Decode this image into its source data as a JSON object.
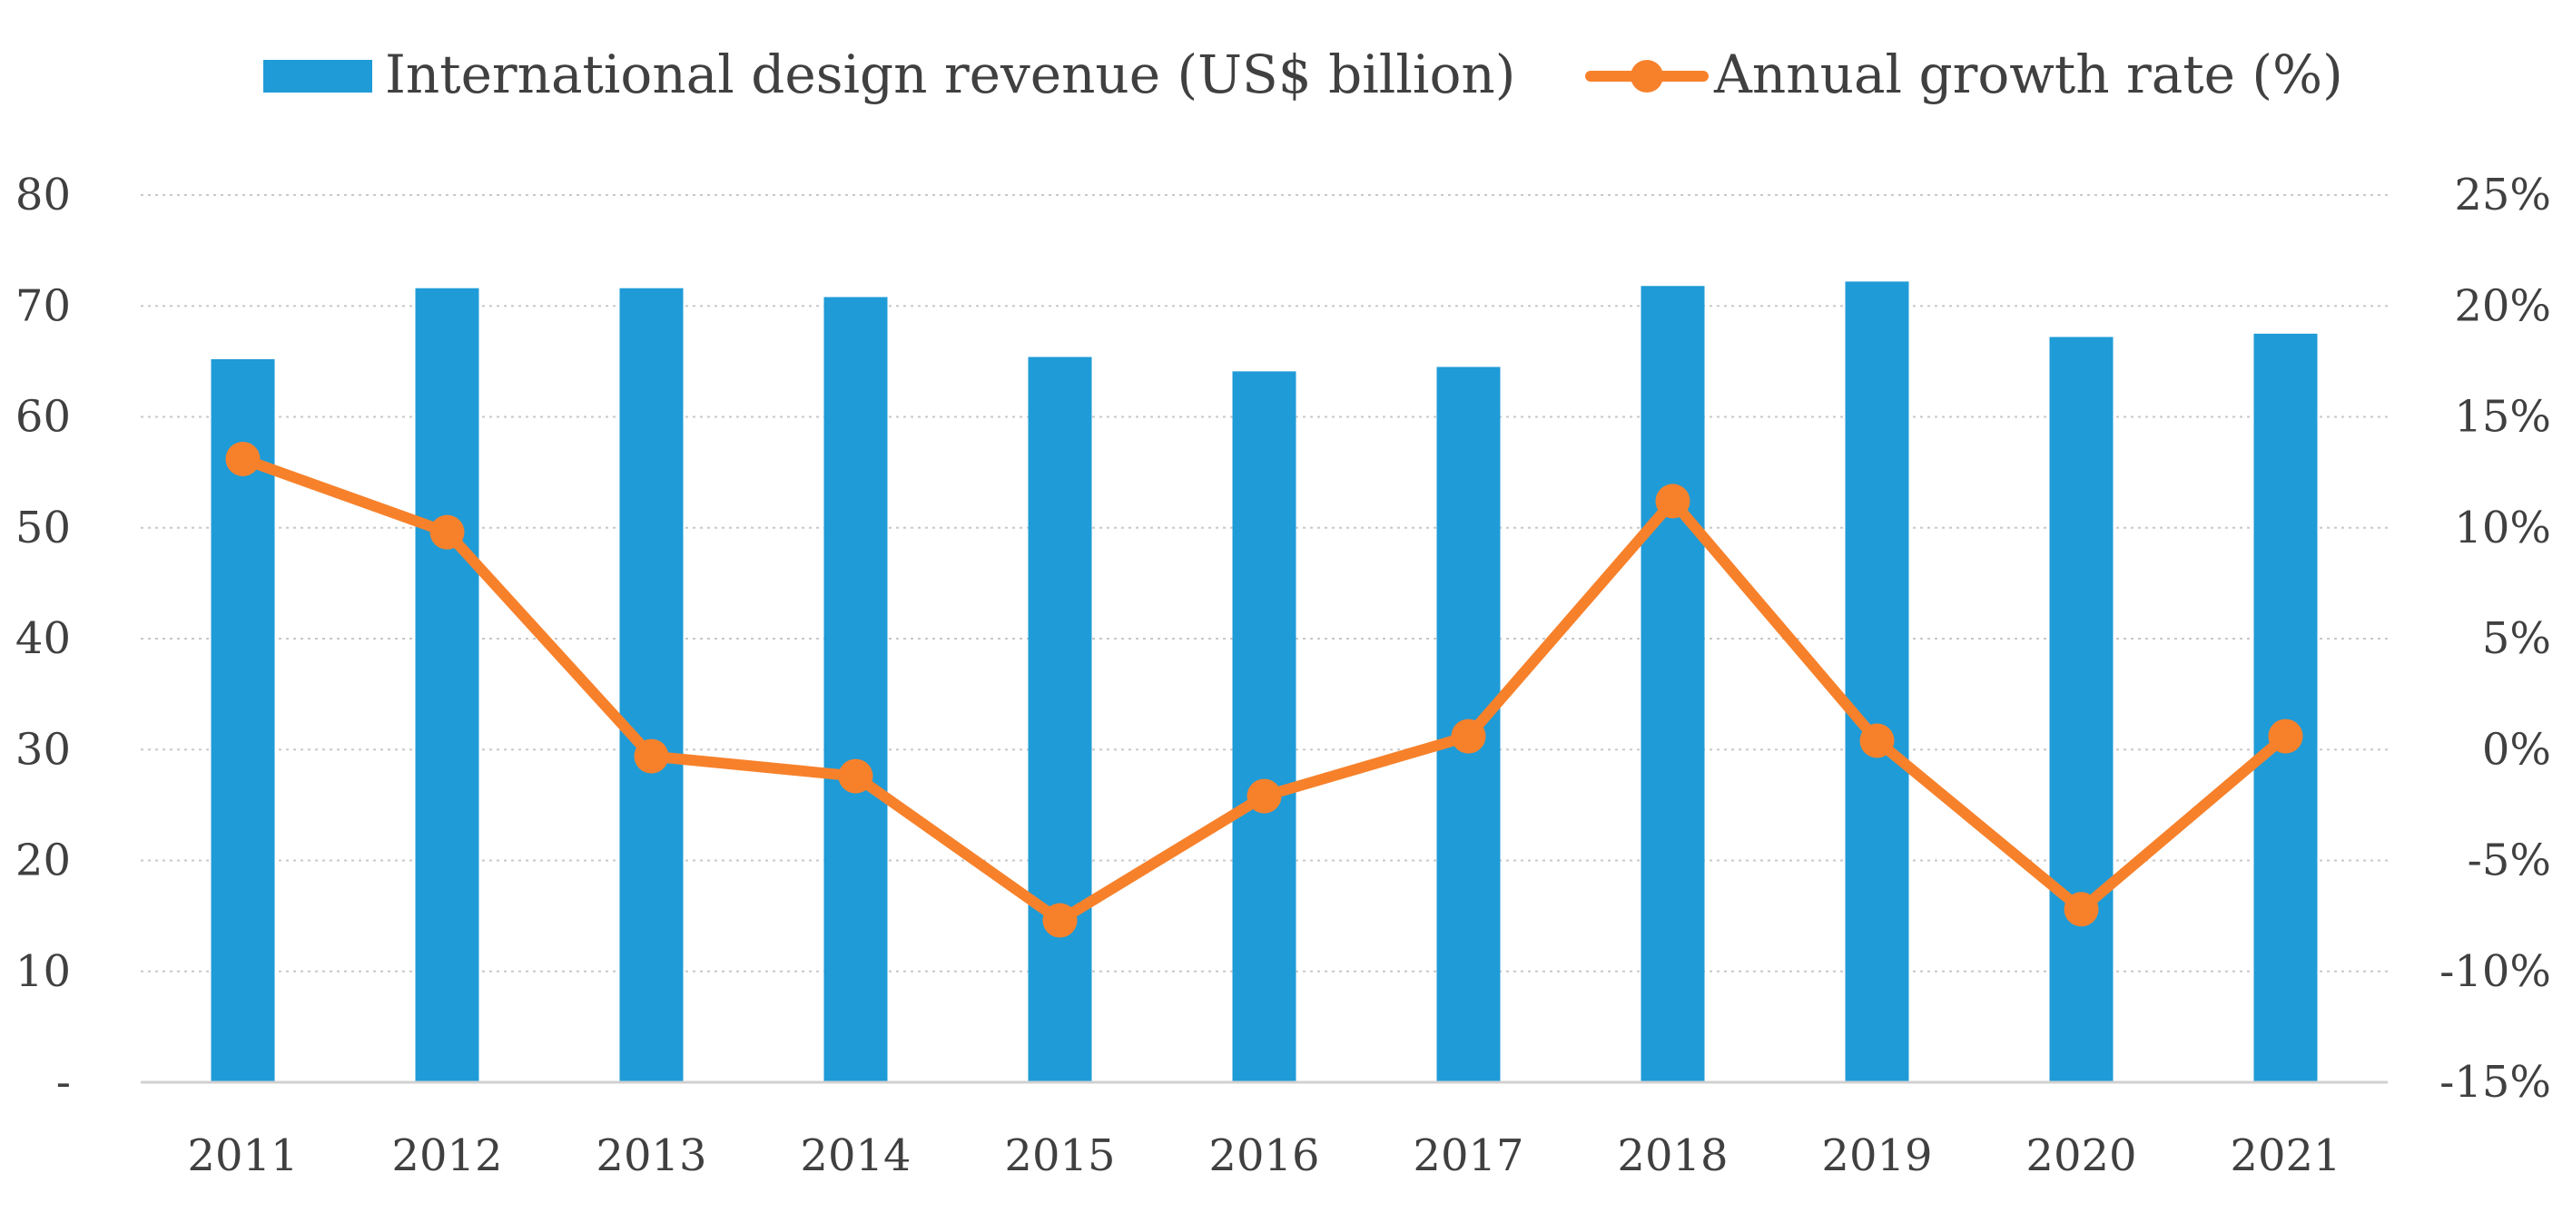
{
  "chart_data": {
    "type": "bar+line",
    "categories": [
      "2011",
      "2012",
      "2013",
      "2014",
      "2015",
      "2016",
      "2017",
      "2018",
      "2019",
      "2020",
      "2021"
    ],
    "series": [
      {
        "name": "International design revenue (US$ billion)",
        "type": "bar",
        "axis": "left",
        "color": "#1f9bd7",
        "values": [
          65.2,
          71.6,
          71.6,
          70.8,
          65.4,
          64.1,
          64.5,
          71.8,
          72.2,
          67.2,
          67.5
        ]
      },
      {
        "name": "Annual growth rate (%)",
        "type": "line",
        "axis": "right",
        "color": "#f7812b",
        "values": [
          13.1,
          9.8,
          -0.3,
          -1.2,
          -7.7,
          -2.1,
          0.6,
          11.2,
          0.4,
          -7.2,
          0.6
        ]
      }
    ],
    "y_left": {
      "lim": [
        0,
        80
      ],
      "ticks": [
        0,
        10,
        20,
        30,
        40,
        50,
        60,
        70,
        80
      ],
      "tick_labels": [
        "-",
        "10",
        "20",
        "30",
        "40",
        "50",
        "60",
        "70",
        "80"
      ]
    },
    "y_right": {
      "lim": [
        -15,
        25
      ],
      "ticks": [
        -15,
        -10,
        -5,
        0,
        5,
        10,
        15,
        20,
        25
      ],
      "tick_labels": [
        "-15%",
        "-10%",
        "-5%",
        "0%",
        "5%",
        "10%",
        "15%",
        "20%",
        "25%"
      ]
    },
    "grid": true,
    "legend_position": "top"
  }
}
